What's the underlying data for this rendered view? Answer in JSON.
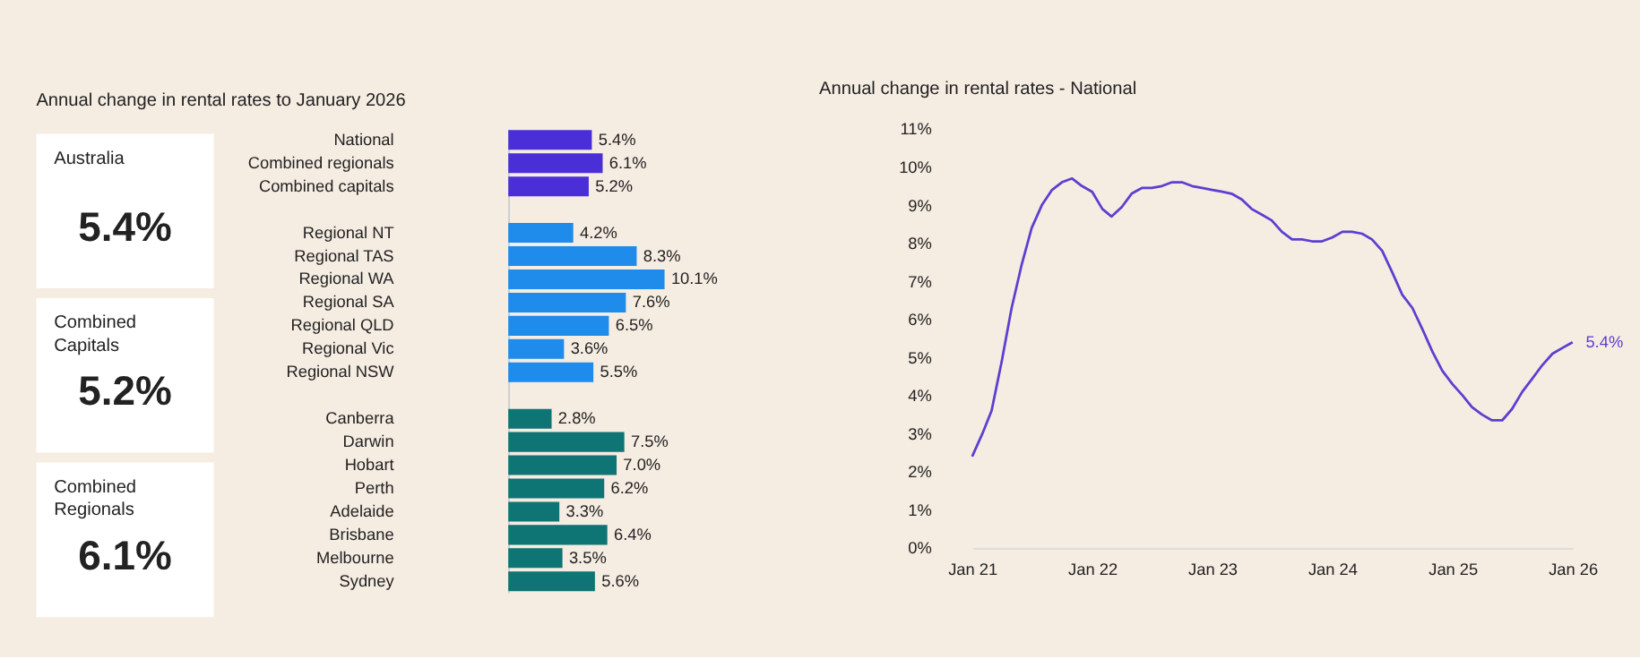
{
  "chart_data": [
    {
      "type": "other",
      "annotations": [
        "Australia",
        "5.4%",
        "Combined Capitals",
        "5.2%",
        "Combined Regionals",
        "6.1%"
      ]
    },
    {
      "type": "bar",
      "orientation": "horizontal",
      "title": "Annual change in rental rates to January 2026",
      "categories": [
        "National",
        "Combined regionals",
        "Combined capitals",
        null,
        "Regional NT",
        "Regional TAS",
        "Regional WA",
        "Regional SA",
        "Regional QLD",
        "Regional Vic",
        "Regional NSW",
        null,
        "Canberra",
        "Darwin",
        "Hobart",
        "Perth",
        "Adelaide",
        "Brisbane",
        "Melbourne",
        "Sydney"
      ],
      "values": [
        5.4,
        6.1,
        5.2,
        null,
        4.2,
        8.3,
        10.1,
        7.6,
        6.5,
        3.6,
        5.5,
        null,
        2.8,
        7.5,
        7.0,
        6.2,
        3.3,
        6.4,
        3.5,
        5.6
      ],
      "colors": [
        "#4a2fd6",
        "#4a2fd6",
        "#4a2fd6",
        null,
        "#1f8ceb",
        "#1f8ceb",
        "#1f8ceb",
        "#1f8ceb",
        "#1f8ceb",
        "#1f8ceb",
        "#1f8ceb",
        null,
        "#0e7474",
        "#0e7474",
        "#0e7474",
        "#0e7474",
        "#0e7474",
        "#0e7474",
        "#0e7474",
        "#0e7474"
      ],
      "value_labels": [
        "5.4%",
        "6.1%",
        "5.2%",
        null,
        "4.2%",
        "8.3%",
        "10.1%",
        "7.6%",
        "6.5%",
        "3.6%",
        "5.5%",
        null,
        "2.8%",
        "7.5%",
        "7.0%",
        "6.2%",
        "3.3%",
        "6.4%",
        "3.5%",
        "5.6%"
      ]
    },
    {
      "type": "line",
      "title": "Annual change in rental rates - National",
      "x": [
        "2021-01",
        "2021-02",
        "2021-03",
        "2021-04",
        "2021-05",
        "2021-06",
        "2021-07",
        "2021-08",
        "2021-09",
        "2021-10",
        "2021-11",
        "2021-12",
        "2022-01",
        "2022-02",
        "2022-03",
        "2022-04",
        "2022-05",
        "2022-06",
        "2022-07",
        "2022-08",
        "2022-09",
        "2022-10",
        "2022-11",
        "2022-12",
        "2023-01",
        "2023-02",
        "2023-03",
        "2023-04",
        "2023-05",
        "2023-06",
        "2023-07",
        "2023-08",
        "2023-09",
        "2023-10",
        "2023-11",
        "2023-12",
        "2024-01",
        "2024-02",
        "2024-03",
        "2024-04",
        "2024-05",
        "2024-06",
        "2024-07",
        "2024-08",
        "2024-09",
        "2024-10",
        "2024-11",
        "2024-12",
        "2025-01",
        "2025-02",
        "2025-03",
        "2025-04",
        "2025-05",
        "2025-06",
        "2025-07",
        "2025-08",
        "2025-09",
        "2025-10",
        "2025-11",
        "2025-12",
        "2026-01"
      ],
      "series": [
        {
          "color": "#5b3fd0",
          "values": [
            2.4,
            3.0,
            3.6,
            4.9,
            6.3,
            7.45,
            8.4,
            9.0,
            9.4,
            9.6,
            9.7,
            9.5,
            9.35,
            8.9,
            8.7,
            8.95,
            9.3,
            9.45,
            9.45,
            9.5,
            9.6,
            9.6,
            9.5,
            9.45,
            9.4,
            9.35,
            9.3,
            9.15,
            8.9,
            8.75,
            8.6,
            8.3,
            8.1,
            8.1,
            8.05,
            8.05,
            8.15,
            8.3,
            8.3,
            8.25,
            8.1,
            7.8,
            7.25,
            6.65,
            6.3,
            5.75,
            5.15,
            4.65,
            4.3,
            4.0,
            3.7,
            3.5,
            3.35,
            3.35,
            3.65,
            4.1,
            4.45,
            4.8,
            5.1,
            5.25,
            5.4
          ]
        }
      ],
      "xlim": [
        "2021-01",
        "2026-01"
      ],
      "xticks": [
        {
          "value": "2021-01",
          "label": "Jan 21"
        },
        {
          "value": "2022-01",
          "label": "Jan 22"
        },
        {
          "value": "2023-01",
          "label": "Jan 23"
        },
        {
          "value": "2024-01",
          "label": "Jan 24"
        },
        {
          "value": "2025-01",
          "label": "Jan 25"
        },
        {
          "value": "2026-01",
          "label": "Jan 26"
        }
      ],
      "ylim": [
        0,
        11
      ],
      "yticks": [
        {
          "value": 0,
          "label": "0%"
        },
        {
          "value": 1,
          "label": "1%"
        },
        {
          "value": 2,
          "label": "2%"
        },
        {
          "value": 3,
          "label": "3%"
        },
        {
          "value": 4,
          "label": "4%"
        },
        {
          "value": 5,
          "label": "5%"
        },
        {
          "value": 6,
          "label": "6%"
        },
        {
          "value": 7,
          "label": "7%"
        },
        {
          "value": 8,
          "label": "8%"
        },
        {
          "value": 9,
          "label": "9%"
        },
        {
          "value": 10,
          "label": "10%"
        },
        {
          "value": 11,
          "label": "11%"
        }
      ],
      "grid": false,
      "line_style": "solid",
      "marker": "none",
      "annotations": [
        {
          "text": "5.4%",
          "x": "2026-01",
          "y": 5.4
        }
      ]
    }
  ]
}
